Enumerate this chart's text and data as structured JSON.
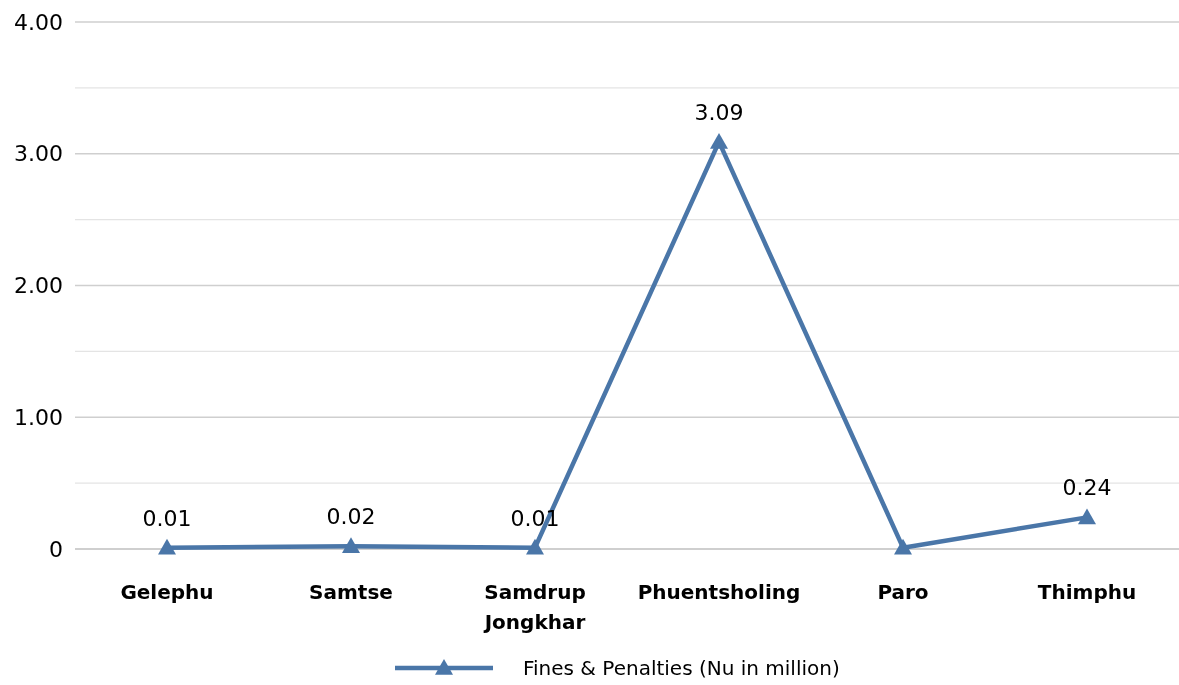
{
  "chart_data": {
    "type": "line",
    "categories": [
      "Gelephu",
      "Samtse",
      "Samdrup Jongkhar",
      "Phuentsholing",
      "Paro",
      "Thimphu"
    ],
    "series": [
      {
        "name": "Fines & Penalties (Nu in million)",
        "color": "#4a76a8",
        "values": [
          0.01,
          0.02,
          0.01,
          3.09,
          0.01,
          0.24
        ],
        "value_labels": [
          "0.01",
          "0.02",
          "0.01",
          "3.09",
          null,
          "0.24"
        ]
      }
    ],
    "ylim": [
      0,
      4
    ],
    "yticks": [
      0,
      {
        "value": 0.5,
        "label": null
      },
      {
        "value": 1,
        "label": "1.00"
      },
      {
        "value": 1.5,
        "label": null
      },
      {
        "value": 2,
        "label": "2.00"
      },
      {
        "value": 2.5,
        "label": null
      },
      {
        "value": 3,
        "label": "3.00"
      },
      {
        "value": 3.5,
        "label": null
      },
      {
        "value": 4,
        "label": "4.00"
      }
    ],
    "grid": "y",
    "legend": "bottom",
    "marker": "triangle",
    "line_style": "solid"
  }
}
